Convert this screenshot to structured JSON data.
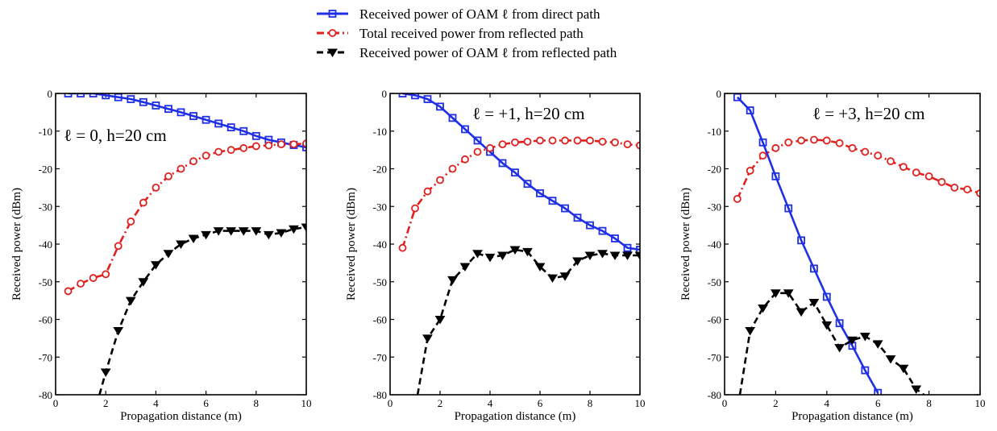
{
  "legend": [
    {
      "label": "Received power of OAM ℓ from direct path",
      "color": "#1f2fe6",
      "marker": "square",
      "dash": "solid"
    },
    {
      "label": "Total received power from reflected path",
      "color": "#e0201e",
      "marker": "circle",
      "dash": "dashdot"
    },
    {
      "label": "Received power of OAM ℓ from reflected path",
      "color": "#000000",
      "marker": "triangle-down",
      "dash": "dashed"
    }
  ],
  "chart_data": [
    {
      "type": "line",
      "annotation": "ℓ = 0, h=20 cm",
      "xlabel": "Propagation distance (m)",
      "ylabel": "Received power (dBm)",
      "xlim": [
        0,
        10
      ],
      "ylim": [
        -80,
        0
      ],
      "xticks": [
        0,
        2,
        4,
        6,
        8,
        10
      ],
      "yticks": [
        0,
        -10,
        -20,
        -30,
        -40,
        -50,
        -60,
        -70,
        -80
      ],
      "series": [
        {
          "x": [
            0.5,
            1,
            1.5,
            2,
            2.5,
            3,
            3.5,
            4,
            4.5,
            5,
            5.5,
            6,
            6.5,
            7,
            7.5,
            8,
            8.5,
            9,
            9.5,
            10
          ],
          "y": [
            0,
            0,
            0,
            -0.5,
            -1,
            -1.5,
            -2.3,
            -3.2,
            -4.1,
            -5,
            -6,
            -7,
            -8,
            -9,
            -10,
            -11.3,
            -12.3,
            -13,
            -13.7,
            -14.3
          ]
        },
        {
          "x": [
            0.5,
            1,
            1.5,
            2,
            2.5,
            3,
            3.5,
            4,
            4.5,
            5,
            5.5,
            6,
            6.5,
            7,
            7.5,
            8,
            8.5,
            9,
            9.5,
            10
          ],
          "y": [
            -52.5,
            -50.5,
            -49,
            -48,
            -40.5,
            -34,
            -29,
            -25,
            -22,
            -20,
            -18,
            -16.5,
            -15.5,
            -15,
            -14.5,
            -14,
            -13.8,
            -13.5,
            -13.5,
            -13.3
          ]
        },
        {
          "x": [
            2,
            2.5,
            3,
            3.5,
            4,
            4.5,
            5,
            5.5,
            6,
            6.5,
            7,
            7.5,
            8,
            8.5,
            9,
            9.5,
            10
          ],
          "y": [
            -74,
            -63,
            -55,
            -50,
            -45.5,
            -42.5,
            -40,
            -38.5,
            -37.5,
            -36.5,
            -36.5,
            -36.5,
            -36.5,
            -37.5,
            -37,
            -36,
            -35.5
          ],
          "lead_x": [
            1.75
          ],
          "lead_y": [
            -80
          ]
        }
      ]
    },
    {
      "type": "line",
      "annotation": "ℓ = +1, h=20 cm",
      "xlabel": "Propagation distance (m)",
      "ylabel": "Received power (dBm)",
      "xlim": [
        0,
        10
      ],
      "ylim": [
        -80,
        0
      ],
      "xticks": [
        0,
        2,
        4,
        6,
        8,
        10
      ],
      "yticks": [
        0,
        -10,
        -20,
        -30,
        -40,
        -50,
        -60,
        -70,
        -80
      ],
      "series": [
        {
          "x": [
            0.5,
            1,
            1.5,
            2,
            2.5,
            3,
            3.5,
            4,
            4.5,
            5,
            5.5,
            6,
            6.5,
            7,
            7.5,
            8,
            8.5,
            9,
            9.5,
            10
          ],
          "y": [
            0,
            -0.5,
            -1.5,
            -3.5,
            -6.5,
            -9.5,
            -12.5,
            -15.5,
            -18.5,
            -21,
            -24,
            -26.5,
            -28.5,
            -30.5,
            -33,
            -35,
            -36.5,
            -38.5,
            -41,
            -41.5
          ]
        },
        {
          "x": [
            0.5,
            1,
            1.5,
            2,
            2.5,
            3,
            3.5,
            4,
            4.5,
            5,
            5.5,
            6,
            6.5,
            7,
            7.5,
            8,
            8.5,
            9,
            9.5,
            10
          ],
          "y": [
            -41,
            -30.5,
            -26,
            -23,
            -20,
            -17.5,
            -15.5,
            -14.5,
            -13.5,
            -13,
            -12.8,
            -12.5,
            -12.5,
            -12.5,
            -12.5,
            -12.5,
            -12.8,
            -13,
            -13.5,
            -13.8
          ]
        },
        {
          "x": [
            1.5,
            2,
            2.5,
            3,
            3.5,
            4,
            4.5,
            5,
            5.5,
            6,
            6.5,
            7,
            7.5,
            8,
            8.5,
            9,
            9.5,
            10
          ],
          "y": [
            -65,
            -60,
            -49.5,
            -46,
            -42.5,
            -43.5,
            -43,
            -41.5,
            -42,
            -46,
            -49,
            -48.5,
            -44.5,
            -43,
            -42.5,
            -43,
            -43,
            -43
          ],
          "lead_x": [
            1.1
          ],
          "lead_y": [
            -80
          ]
        }
      ]
    },
    {
      "type": "line",
      "annotation": "ℓ = +3, h=20 cm",
      "xlabel": "Propagation distance (m)",
      "ylabel": "Received power (dBm)",
      "xlim": [
        0,
        10
      ],
      "ylim": [
        -80,
        0
      ],
      "xticks": [
        0,
        2,
        4,
        6,
        8,
        10
      ],
      "yticks": [
        0,
        -10,
        -20,
        -30,
        -40,
        -50,
        -60,
        -70,
        -80
      ],
      "series": [
        {
          "x": [
            0.5,
            1,
            1.5,
            2,
            2.5,
            3,
            3.5,
            4,
            4.5,
            5,
            5.5,
            6
          ],
          "y": [
            -1,
            -4.5,
            -13,
            -22,
            -30.5,
            -39,
            -46.5,
            -54,
            -61,
            -67,
            -73.5,
            -79.5
          ]
        },
        {
          "x": [
            0.5,
            1,
            1.5,
            2,
            2.5,
            3,
            3.5,
            4,
            4.5,
            5,
            5.5,
            6,
            6.5,
            7,
            7.5,
            8,
            8.5,
            9,
            9.5,
            10
          ],
          "y": [
            -28,
            -20.5,
            -16.5,
            -14.5,
            -13,
            -12.5,
            -12.3,
            -12.5,
            -13.2,
            -14.5,
            -15.5,
            -16.5,
            -18,
            -19.5,
            -21,
            -22,
            -23.5,
            -25,
            -25.5,
            -26.5
          ]
        },
        {
          "x": [
            1,
            1.5,
            2,
            2.5,
            3,
            3.5,
            4,
            4.5,
            5,
            5.5,
            6,
            6.5,
            7,
            7.5
          ],
          "y": [
            -63,
            -57,
            -53,
            -53,
            -58,
            -55.5,
            -61.5,
            -67.5,
            -65.5,
            -64.5,
            -66.5,
            -70.5,
            -73,
            -78.5
          ],
          "lead_x": [
            0.6
          ],
          "lead_y": [
            -80
          ],
          "tail_x": [
            7.8
          ],
          "tail_y": [
            -80
          ]
        }
      ]
    }
  ]
}
